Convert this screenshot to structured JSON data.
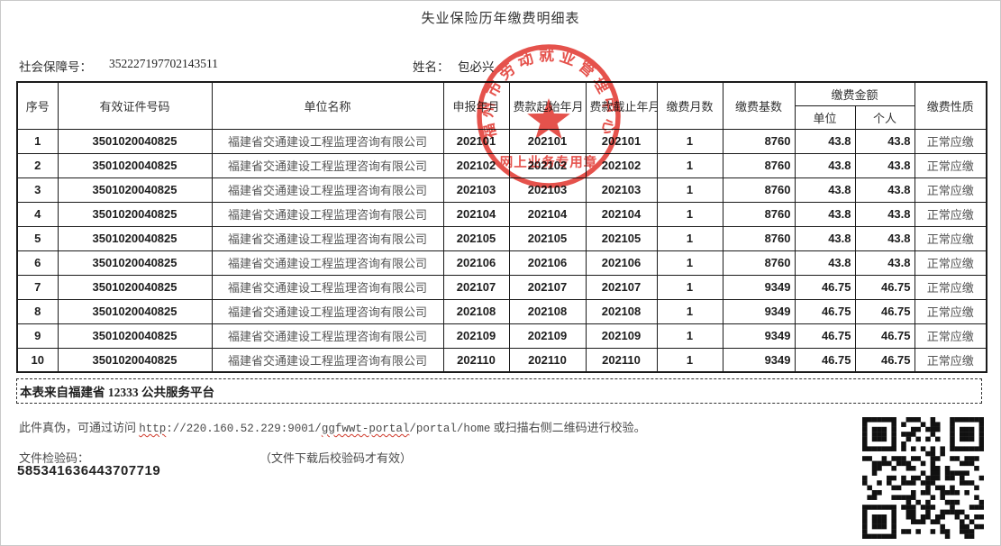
{
  "page": {
    "title": "失业保险历年缴费明细表"
  },
  "info": {
    "ssn_label": "社会保障号：",
    "ssn_value": "352227197702143511",
    "name_label": "姓名：",
    "name_value": "包必兴"
  },
  "table": {
    "headers": {
      "seq": "序号",
      "id_number": "有效证件号码",
      "company": "单位名称",
      "declare": "申报年月",
      "start": "费款起始年月",
      "end": "费款截止年月",
      "months": "缴费月数",
      "base": "缴费基数",
      "amount": "缴费金额",
      "amount_unit": "单位",
      "amount_personal": "个人",
      "nature": "缴费性质"
    },
    "col_keys": [
      "seq",
      "id-number",
      "company",
      "declare-month",
      "start-month",
      "end-month",
      "months",
      "base",
      "unit-amount",
      "personal-amount",
      "nature"
    ],
    "rows": [
      [
        "1",
        "3501020040825",
        "福建省交通建设工程监理咨询有限公司",
        "202101",
        "202101",
        "202101",
        "1",
        "8760",
        "43.8",
        "43.8",
        "正常应缴"
      ],
      [
        "2",
        "3501020040825",
        "福建省交通建设工程监理咨询有限公司",
        "202102",
        "202102",
        "202102",
        "1",
        "8760",
        "43.8",
        "43.8",
        "正常应缴"
      ],
      [
        "3",
        "3501020040825",
        "福建省交通建设工程监理咨询有限公司",
        "202103",
        "202103",
        "202103",
        "1",
        "8760",
        "43.8",
        "43.8",
        "正常应缴"
      ],
      [
        "4",
        "3501020040825",
        "福建省交通建设工程监理咨询有限公司",
        "202104",
        "202104",
        "202104",
        "1",
        "8760",
        "43.8",
        "43.8",
        "正常应缴"
      ],
      [
        "5",
        "3501020040825",
        "福建省交通建设工程监理咨询有限公司",
        "202105",
        "202105",
        "202105",
        "1",
        "8760",
        "43.8",
        "43.8",
        "正常应缴"
      ],
      [
        "6",
        "3501020040825",
        "福建省交通建设工程监理咨询有限公司",
        "202106",
        "202106",
        "202106",
        "1",
        "8760",
        "43.8",
        "43.8",
        "正常应缴"
      ],
      [
        "7",
        "3501020040825",
        "福建省交通建设工程监理咨询有限公司",
        "202107",
        "202107",
        "202107",
        "1",
        "9349",
        "46.75",
        "46.75",
        "正常应缴"
      ],
      [
        "8",
        "3501020040825",
        "福建省交通建设工程监理咨询有限公司",
        "202108",
        "202108",
        "202108",
        "1",
        "9349",
        "46.75",
        "46.75",
        "正常应缴"
      ],
      [
        "9",
        "3501020040825",
        "福建省交通建设工程监理咨询有限公司",
        "202109",
        "202109",
        "202109",
        "1",
        "9349",
        "46.75",
        "46.75",
        "正常应缴"
      ],
      [
        "10",
        "3501020040825",
        "福建省交通建设工程监理咨询有限公司",
        "202110",
        "202110",
        "202110",
        "1",
        "9349",
        "46.75",
        "46.75",
        "正常应缴"
      ]
    ]
  },
  "stamp": {
    "arc_text": "福州市劳动就业管理中心",
    "bottom_text": "网上业务专用章",
    "color": "#e02b24"
  },
  "notice": {
    "source_text": "本表来自福建省 12333 公共服务平台"
  },
  "verify": {
    "prefix": "此件真伪，可通过访问 ",
    "url_p1": "http",
    "url_p2": "://220.160.52.229:9001/",
    "url_p3": "ggfwwt-portal",
    "url_p4": "/portal/home",
    "suffix": " 或扫描右侧二维码进行校验。",
    "check_code_label": "文件检验码：",
    "check_code_note": "（文件下载后校验码才有效）",
    "check_code_value": "585341636443707719"
  }
}
